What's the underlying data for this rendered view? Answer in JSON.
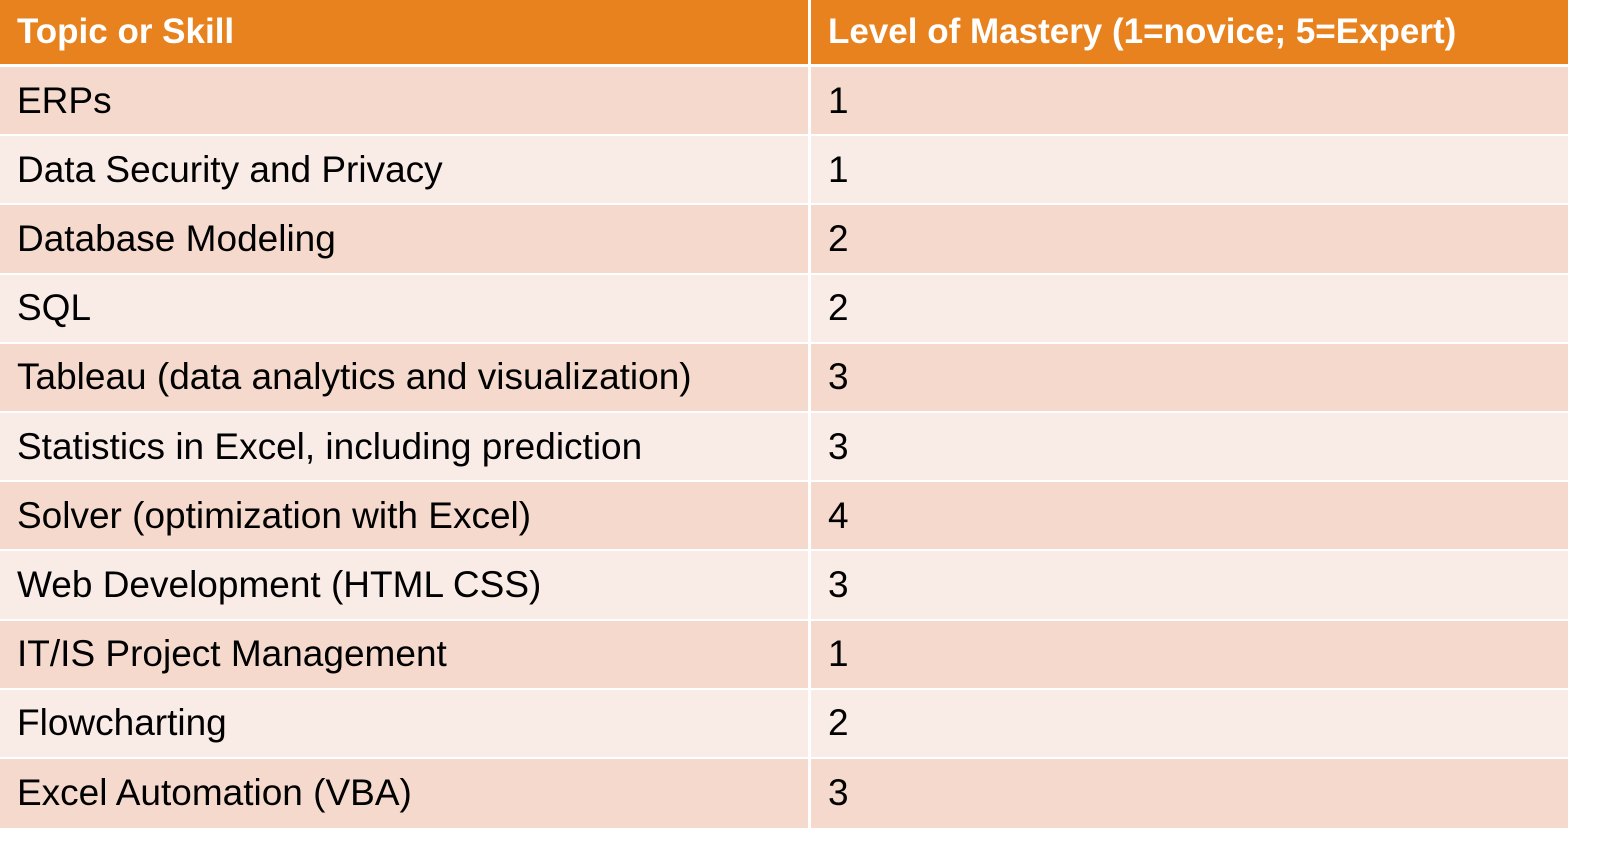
{
  "table": {
    "headers": [
      "Topic or Skill",
      "Level of Mastery (1=novice; 5=Expert)"
    ],
    "rows": [
      [
        "ERPs",
        "1"
      ],
      [
        "Data Security and Privacy",
        "1"
      ],
      [
        "Database Modeling",
        "2"
      ],
      [
        "SQL",
        "2"
      ],
      [
        "Tableau (data analytics and visualization)",
        "3"
      ],
      [
        "Statistics in Excel, including prediction",
        "3"
      ],
      [
        "Solver (optimization with Excel)",
        "4"
      ],
      [
        "Web Development (HTML CSS)",
        "3"
      ],
      [
        "IT/IS Project Management",
        "1"
      ],
      [
        "Flowcharting",
        "2"
      ],
      [
        "Excel Automation (VBA)",
        "3"
      ]
    ]
  },
  "colors": {
    "header_bg": "#e8821e",
    "row_odd_bg": "#f4d9cc",
    "row_even_bg": "#f9ebe6"
  }
}
